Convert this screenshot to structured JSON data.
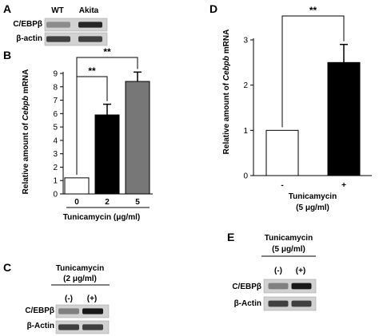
{
  "panels": {
    "A": {
      "letter": "A",
      "lanes": [
        "WT",
        "Akita"
      ],
      "rows": [
        {
          "label": "C/EBPβ",
          "intensity": [
            0.45,
            0.85
          ]
        },
        {
          "label": "β-actin",
          "intensity": [
            0.75,
            0.75
          ]
        }
      ]
    },
    "C": {
      "letter": "C",
      "treatment": "Tunicamycin",
      "dose": "(2 μg/ml)",
      "lanes": [
        "(-)",
        "(+)"
      ],
      "rows": [
        {
          "label": "C/EBPβ",
          "intensity": [
            0.5,
            0.9
          ]
        },
        {
          "label": "β-Actin",
          "intensity": [
            0.75,
            0.75
          ]
        }
      ]
    },
    "E": {
      "letter": "E",
      "treatment": "Tunicamycin",
      "dose": "(5 μg/ml)",
      "lanes": [
        "(-)",
        "(+)"
      ],
      "rows": [
        {
          "label": "C/EBPβ",
          "intensity": [
            0.5,
            0.9
          ]
        },
        {
          "label": "β-Actin",
          "intensity": [
            0.75,
            0.75
          ]
        }
      ]
    }
  },
  "chart_data": [
    {
      "panel": "B",
      "type": "bar",
      "categories": [
        "0",
        "2",
        "5"
      ],
      "values": [
        1.2,
        5.9,
        8.4
      ],
      "errors": [
        0,
        0.8,
        0.7
      ],
      "colors": [
        "#ffffff",
        "#000000",
        "#777777"
      ],
      "ylabel_prefix": "Relative amount of ",
      "ylabel_gene": "Cebpb",
      "ylabel_suffix": " mRNA",
      "xlabel": "Tunicamycin (μg/ml)",
      "ylim": [
        0,
        9
      ],
      "yticks": [
        0,
        1,
        2,
        3,
        4,
        5,
        6,
        7,
        8,
        9
      ],
      "significance": [
        {
          "from": 0,
          "to": 1,
          "label": "**"
        },
        {
          "from": 0,
          "to": 2,
          "label": "**"
        }
      ]
    },
    {
      "panel": "D",
      "type": "bar",
      "categories": [
        "-",
        "+"
      ],
      "values": [
        1.0,
        2.5
      ],
      "errors": [
        0,
        0.4
      ],
      "colors": [
        "#ffffff",
        "#000000"
      ],
      "ylabel_prefix": "Relative amount of ",
      "ylabel_gene": "Cebpb",
      "ylabel_suffix": " mRNA",
      "xlabel": "Tunicamycin",
      "xlabel2": "(5 μg/ml)",
      "ylim": [
        0,
        3
      ],
      "yticks": [
        0,
        1,
        2,
        3
      ],
      "significance": [
        {
          "from": 0,
          "to": 1,
          "label": "**"
        }
      ]
    }
  ]
}
